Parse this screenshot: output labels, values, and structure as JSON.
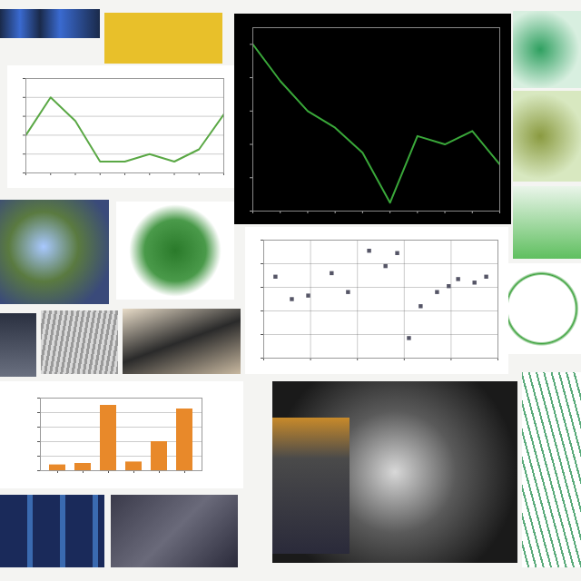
{
  "chart_data": [
    {
      "type": "line",
      "x": [
        1,
        2,
        3,
        4,
        5,
        6,
        7,
        8,
        9
      ],
      "values": [
        40,
        80,
        55,
        12,
        12,
        20,
        12,
        25,
        62
      ],
      "color": "#5aa845",
      "xlim": [
        1,
        9
      ],
      "xticks": [
        1,
        2,
        3,
        4,
        5,
        6,
        7,
        8,
        9
      ],
      "ylim": [
        0,
        100
      ],
      "yticks": [
        0,
        20,
        40,
        60,
        80,
        100
      ],
      "grid": true,
      "tick_labels": false
    },
    {
      "type": "line",
      "x": [
        1,
        2,
        3,
        4,
        5,
        6,
        7,
        8,
        9,
        10
      ],
      "values": [
        100,
        78,
        60,
        50,
        35,
        5,
        45,
        40,
        48,
        28
      ],
      "color": "#3aa83a",
      "xlim": [
        1,
        10
      ],
      "xticks": [
        1,
        2,
        3,
        4,
        5,
        6,
        7,
        8,
        9,
        10
      ],
      "ylim": [
        0,
        110
      ],
      "yticks": [
        0,
        20,
        40,
        60,
        80,
        100
      ],
      "grid": false,
      "tick_labels": false
    },
    {
      "type": "scatter",
      "x": [
        5,
        12,
        19,
        29,
        36,
        45,
        52,
        57,
        62,
        67,
        74,
        79,
        83,
        90,
        95
      ],
      "values": [
        69,
        50,
        53,
        72,
        56,
        91,
        78,
        89,
        17,
        44,
        56,
        61,
        67,
        64,
        69
      ],
      "color": "#555566",
      "xlim": [
        0,
        100
      ],
      "xticks": [
        0,
        20,
        40,
        60,
        80,
        100
      ],
      "ylim": [
        0,
        100
      ],
      "yticks": [
        0,
        20,
        40,
        60,
        80,
        100
      ],
      "grid": true,
      "tick_labels": false,
      "marker": "square"
    },
    {
      "type": "bar",
      "categories": [
        null,
        null,
        null,
        null,
        null,
        null
      ],
      "values": [
        8,
        10,
        90,
        12,
        40,
        85
      ],
      "color": "#e8892a",
      "ylim": [
        0,
        100
      ],
      "yticks": [
        0,
        20,
        40,
        60,
        80,
        100
      ],
      "grid": true,
      "tick_labels": false
    }
  ]
}
